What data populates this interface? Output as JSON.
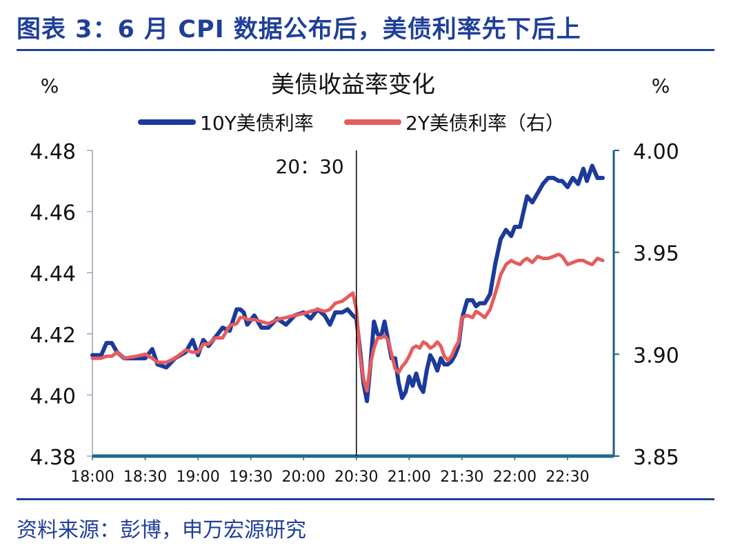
{
  "figure": {
    "title": "图表 3：6 月 CPI 数据公布后，美债利率先下后上",
    "source": "资料来源：彭博，申万宏源研究"
  },
  "chart_data": {
    "type": "line",
    "title": "美债收益率变化",
    "ylabel_left": "%",
    "ylabel_right": "%",
    "x_ticks": [
      "18:00",
      "18:30",
      "19:00",
      "19:30",
      "20:00",
      "20:30",
      "21:00",
      "21:30",
      "22:00",
      "22:30"
    ],
    "x_range": [
      "18:00",
      "22:50"
    ],
    "y_left": {
      "ticks": [
        "4.48",
        "4.46",
        "4.44",
        "4.42",
        "4.40",
        "4.38"
      ],
      "range": [
        4.38,
        4.48
      ]
    },
    "y_right": {
      "ticks": [
        "4.00",
        "3.95",
        "3.90",
        "3.85"
      ],
      "range": [
        3.85,
        4.0
      ]
    },
    "legend_position": "top-center",
    "grid": false,
    "annotation": {
      "text": "20：30",
      "x": "20:30"
    },
    "series": [
      {
        "name": "10Y美债利率",
        "axis": "left",
        "color": "#1b3a9c",
        "points": [
          [
            "18:00",
            4.413
          ],
          [
            "18:05",
            4.413
          ],
          [
            "18:08",
            4.417
          ],
          [
            "18:11",
            4.417
          ],
          [
            "18:14",
            4.414
          ],
          [
            "18:18",
            4.412
          ],
          [
            "18:25",
            4.412
          ],
          [
            "18:30",
            4.412
          ],
          [
            "18:34",
            4.415
          ],
          [
            "18:37",
            4.41
          ],
          [
            "18:42",
            4.409
          ],
          [
            "18:47",
            4.412
          ],
          [
            "18:53",
            4.414
          ],
          [
            "18:57",
            4.418
          ],
          [
            "19:00",
            4.413
          ],
          [
            "19:03",
            4.418
          ],
          [
            "19:06",
            4.416
          ],
          [
            "19:10",
            4.419
          ],
          [
            "19:14",
            4.422
          ],
          [
            "19:18",
            4.421
          ],
          [
            "19:22",
            4.428
          ],
          [
            "19:24",
            4.428
          ],
          [
            "19:26",
            4.427
          ],
          [
            "19:28",
            4.423
          ],
          [
            "19:32",
            4.426
          ],
          [
            "19:36",
            4.422
          ],
          [
            "19:40",
            4.422
          ],
          [
            "19:45",
            4.425
          ],
          [
            "19:50",
            4.423
          ],
          [
            "19:55",
            4.426
          ],
          [
            "20:00",
            4.427
          ],
          [
            "20:04",
            4.425
          ],
          [
            "20:08",
            4.428
          ],
          [
            "20:12",
            4.426
          ],
          [
            "20:15",
            4.423
          ],
          [
            "20:18",
            4.427
          ],
          [
            "20:22",
            4.427
          ],
          [
            "20:25",
            4.428
          ],
          [
            "20:28",
            4.426
          ],
          [
            "20:30",
            4.425
          ],
          [
            "20:32",
            4.415
          ],
          [
            "20:34",
            4.404
          ],
          [
            "20:36",
            4.398
          ],
          [
            "20:38",
            4.41
          ],
          [
            "20:40",
            4.424
          ],
          [
            "20:42",
            4.42
          ],
          [
            "20:44",
            4.419
          ],
          [
            "20:46",
            4.424
          ],
          [
            "20:48",
            4.418
          ],
          [
            "20:50",
            4.412
          ],
          [
            "20:52",
            4.412
          ],
          [
            "20:54",
            4.404
          ],
          [
            "20:56",
            4.399
          ],
          [
            "20:58",
            4.401
          ],
          [
            "21:00",
            4.406
          ],
          [
            "21:02",
            4.403
          ],
          [
            "21:04",
            4.407
          ],
          [
            "21:06",
            4.403
          ],
          [
            "21:08",
            4.401
          ],
          [
            "21:10",
            4.408
          ],
          [
            "21:12",
            4.413
          ],
          [
            "21:14",
            4.411
          ],
          [
            "21:16",
            4.408
          ],
          [
            "21:18",
            4.412
          ],
          [
            "21:20",
            4.41
          ],
          [
            "21:22",
            4.41
          ],
          [
            "21:24",
            4.411
          ],
          [
            "21:26",
            4.413
          ],
          [
            "21:28",
            4.416
          ],
          [
            "21:30",
            4.425
          ],
          [
            "21:33",
            4.431
          ],
          [
            "21:36",
            4.431
          ],
          [
            "21:38",
            4.429
          ],
          [
            "21:40",
            4.43
          ],
          [
            "21:43",
            4.43
          ],
          [
            "21:46",
            4.433
          ],
          [
            "21:49",
            4.443
          ],
          [
            "21:52",
            4.451
          ],
          [
            "21:55",
            4.454
          ],
          [
            "21:58",
            4.452
          ],
          [
            "22:00",
            4.455
          ],
          [
            "22:03",
            4.455
          ],
          [
            "22:05",
            4.46
          ],
          [
            "22:07",
            4.465
          ],
          [
            "22:10",
            4.463
          ],
          [
            "22:13",
            4.466
          ],
          [
            "22:16",
            4.469
          ],
          [
            "22:19",
            4.471
          ],
          [
            "22:22",
            4.471
          ],
          [
            "22:25",
            4.47
          ],
          [
            "22:27",
            4.47
          ],
          [
            "22:30",
            4.468
          ],
          [
            "22:33",
            4.471
          ],
          [
            "22:36",
            4.469
          ],
          [
            "22:39",
            4.474
          ],
          [
            "22:41",
            4.47
          ],
          [
            "22:44",
            4.475
          ],
          [
            "22:47",
            4.471
          ],
          [
            "22:50",
            4.471
          ]
        ]
      },
      {
        "name": "2Y美债利率（右）",
        "axis": "right",
        "color": "#e65c5c",
        "points": [
          [
            "18:00",
            3.898
          ],
          [
            "18:05",
            3.898
          ],
          [
            "18:08",
            3.899
          ],
          [
            "18:11",
            3.899
          ],
          [
            "18:14",
            3.901
          ],
          [
            "18:18",
            3.898
          ],
          [
            "18:25",
            3.899
          ],
          [
            "18:30",
            3.9
          ],
          [
            "18:34",
            3.898
          ],
          [
            "18:37",
            3.896
          ],
          [
            "18:42",
            3.896
          ],
          [
            "18:47",
            3.898
          ],
          [
            "18:53",
            3.902
          ],
          [
            "18:57",
            3.901
          ],
          [
            "19:00",
            3.901
          ],
          [
            "19:03",
            3.905
          ],
          [
            "19:06",
            3.905
          ],
          [
            "19:10",
            3.908
          ],
          [
            "19:14",
            3.908
          ],
          [
            "19:18",
            3.914
          ],
          [
            "19:22",
            3.915
          ],
          [
            "19:24",
            3.918
          ],
          [
            "19:26",
            3.918
          ],
          [
            "19:28",
            3.917
          ],
          [
            "19:32",
            3.917
          ],
          [
            "19:36",
            3.916
          ],
          [
            "19:40",
            3.915
          ],
          [
            "19:45",
            3.917
          ],
          [
            "19:50",
            3.918
          ],
          [
            "19:55",
            3.919
          ],
          [
            "20:00",
            3.92
          ],
          [
            "20:04",
            3.921
          ],
          [
            "20:08",
            3.922
          ],
          [
            "20:12",
            3.921
          ],
          [
            "20:15",
            3.922
          ],
          [
            "20:18",
            3.925
          ],
          [
            "20:22",
            3.926
          ],
          [
            "20:25",
            3.928
          ],
          [
            "20:28",
            3.93
          ],
          [
            "20:30",
            3.922
          ],
          [
            "20:32",
            3.9
          ],
          [
            "20:34",
            3.888
          ],
          [
            "20:36",
            3.882
          ],
          [
            "20:38",
            3.895
          ],
          [
            "20:40",
            3.903
          ],
          [
            "20:42",
            3.908
          ],
          [
            "20:44",
            3.908
          ],
          [
            "20:46",
            3.909
          ],
          [
            "20:48",
            3.907
          ],
          [
            "20:50",
            3.9
          ],
          [
            "20:52",
            3.893
          ],
          [
            "20:54",
            3.891
          ],
          [
            "20:56",
            3.894
          ],
          [
            "20:58",
            3.896
          ],
          [
            "21:00",
            3.899
          ],
          [
            "21:02",
            3.903
          ],
          [
            "21:04",
            3.904
          ],
          [
            "21:06",
            3.903
          ],
          [
            "21:08",
            3.906
          ],
          [
            "21:10",
            3.905
          ],
          [
            "21:12",
            3.903
          ],
          [
            "21:14",
            3.904
          ],
          [
            "21:16",
            3.906
          ],
          [
            "21:18",
            3.904
          ],
          [
            "21:20",
            3.899
          ],
          [
            "21:22",
            3.897
          ],
          [
            "21:24",
            3.899
          ],
          [
            "21:26",
            3.903
          ],
          [
            "21:28",
            3.906
          ],
          [
            "21:30",
            3.918
          ],
          [
            "21:33",
            3.919
          ],
          [
            "21:36",
            3.918
          ],
          [
            "21:38",
            3.921
          ],
          [
            "21:40",
            3.92
          ],
          [
            "21:43",
            3.918
          ],
          [
            "21:46",
            3.922
          ],
          [
            "21:49",
            3.93
          ],
          [
            "21:52",
            3.939
          ],
          [
            "21:55",
            3.944
          ],
          [
            "21:58",
            3.946
          ],
          [
            "22:00",
            3.945
          ],
          [
            "22:03",
            3.944
          ],
          [
            "22:05",
            3.946
          ],
          [
            "22:07",
            3.947
          ],
          [
            "22:10",
            3.945
          ],
          [
            "22:13",
            3.948
          ],
          [
            "22:16",
            3.947
          ],
          [
            "22:19",
            3.947
          ],
          [
            "22:22",
            3.948
          ],
          [
            "22:25",
            3.949
          ],
          [
            "22:27",
            3.948
          ],
          [
            "22:30",
            3.944
          ],
          [
            "22:33",
            3.945
          ],
          [
            "22:36",
            3.946
          ],
          [
            "22:39",
            3.946
          ],
          [
            "22:41",
            3.945
          ],
          [
            "22:44",
            3.944
          ],
          [
            "22:47",
            3.947
          ],
          [
            "22:50",
            3.946
          ]
        ]
      }
    ]
  }
}
